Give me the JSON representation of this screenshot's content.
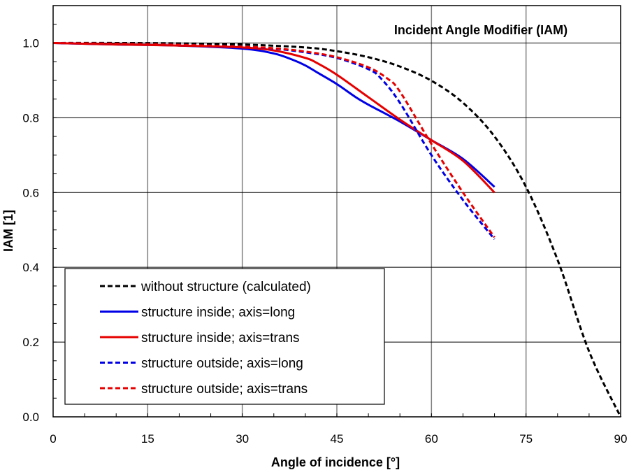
{
  "chart_data": {
    "type": "line",
    "title": "Incident Angle Modifier (IAM)",
    "xlabel": "Angle of incidence [°]",
    "ylabel": "IAM  [1]",
    "xlim": [
      0,
      90
    ],
    "ylim": [
      0,
      1.1
    ],
    "xticks": [
      0,
      15,
      30,
      45,
      60,
      75,
      90
    ],
    "yticks": [
      0.0,
      0.2,
      0.4,
      0.6,
      0.8,
      1.0
    ],
    "ytick_labels": [
      "0.0",
      "0.2",
      "0.4",
      "0.6",
      "0.8",
      "1.0"
    ],
    "xtick_labels": [
      "0",
      "15",
      "30",
      "45",
      "60",
      "75",
      "90"
    ],
    "grid": true,
    "legend_position": "bottom-left",
    "colors": {
      "blue": "#0000e6",
      "red": "#e60000",
      "black": "#000000"
    },
    "series": [
      {
        "name": "without structure (calculated)",
        "color": "#000000",
        "dash": "dashed",
        "x": [
          0,
          10,
          20,
          30,
          40,
          45,
          50,
          55,
          60,
          65,
          70,
          75,
          80,
          85,
          90
        ],
        "y": [
          1.0,
          1.0,
          0.999,
          0.996,
          0.988,
          0.978,
          0.962,
          0.937,
          0.899,
          0.84,
          0.75,
          0.615,
          0.42,
          0.175,
          0.0
        ]
      },
      {
        "name": "structure inside; axis=long",
        "color": "#0000e6",
        "dash": "solid",
        "x": [
          0,
          10,
          20,
          30,
          35,
          38,
          40,
          42,
          45,
          48,
          50,
          55,
          60,
          65,
          70
        ],
        "y": [
          1.0,
          0.996,
          0.993,
          0.985,
          0.972,
          0.955,
          0.94,
          0.92,
          0.89,
          0.855,
          0.835,
          0.79,
          0.74,
          0.69,
          0.615
        ]
      },
      {
        "name": "structure inside; axis=trans",
        "color": "#e60000",
        "dash": "solid",
        "x": [
          0,
          10,
          20,
          30,
          35,
          40,
          42,
          45,
          50,
          55,
          60,
          65,
          70
        ],
        "y": [
          1.0,
          0.996,
          0.993,
          0.988,
          0.98,
          0.96,
          0.945,
          0.915,
          0.855,
          0.795,
          0.74,
          0.685,
          0.6
        ]
      },
      {
        "name": "structure outside; axis=long",
        "color": "#0000e6",
        "dash": "dashed",
        "x": [
          0,
          10,
          20,
          30,
          35,
          40,
          45,
          50,
          52,
          55,
          60,
          65,
          70
        ],
        "y": [
          1.0,
          0.998,
          0.995,
          0.99,
          0.985,
          0.975,
          0.96,
          0.93,
          0.905,
          0.84,
          0.7,
          0.58,
          0.475
        ]
      },
      {
        "name": "structure outside; axis=trans",
        "color": "#e60000",
        "dash": "dashed",
        "x": [
          0,
          10,
          20,
          30,
          35,
          40,
          45,
          50,
          53,
          55,
          60,
          65,
          70
        ],
        "y": [
          1.0,
          0.998,
          0.995,
          0.99,
          0.986,
          0.977,
          0.962,
          0.935,
          0.905,
          0.87,
          0.73,
          0.6,
          0.48
        ]
      }
    ]
  }
}
